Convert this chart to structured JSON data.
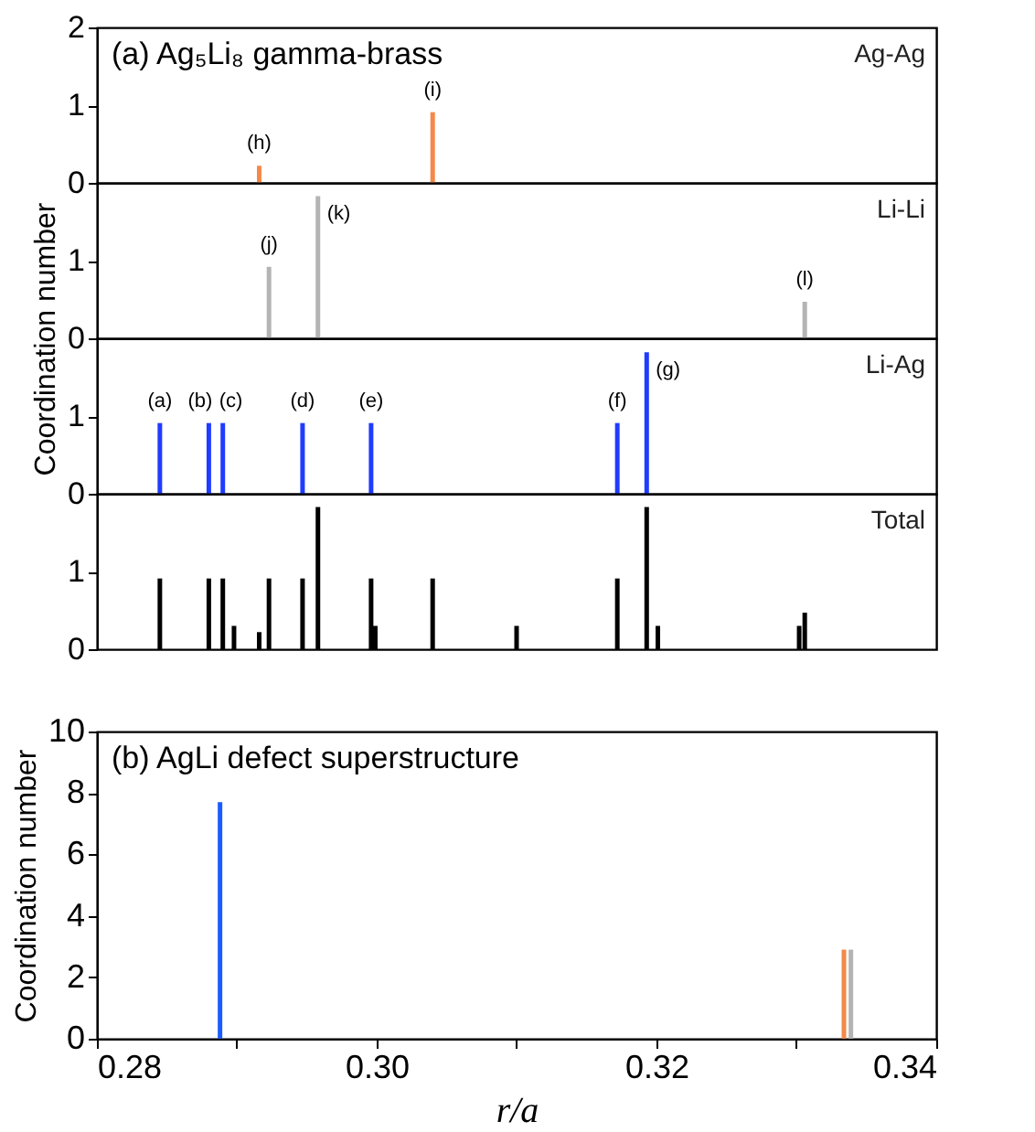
{
  "chart_data": [
    {
      "type": "bar",
      "title": "(a) Ag₅Li₈ gamma-brass",
      "xlim": [
        0.28,
        0.34
      ],
      "ylim": [
        0,
        2
      ],
      "yticks": [
        0,
        1,
        2
      ],
      "tick_labels": "y",
      "series": [
        {
          "name": "Ag-Ag",
          "color": "#f4894a",
          "x": [
            0.2916,
            0.304
          ],
          "values": [
            0.22,
            0.91
          ]
        }
      ],
      "annotations": [
        {
          "text": "(h)",
          "x": 0.2916,
          "y": 0.22
        },
        {
          "text": "(i)",
          "x": 0.304,
          "y": 0.91
        }
      ]
    },
    {
      "type": "bar",
      "ylabel": "Coordination number",
      "xlim": [
        0.28,
        0.34
      ],
      "ylim": [
        0,
        2
      ],
      "yticks": [
        0,
        1
      ],
      "tick_labels": "y",
      "series": [
        {
          "name": "Li-Li",
          "color": "#b4b4b4",
          "x": [
            0.2923,
            0.2958,
            0.3306
          ],
          "values": [
            0.92,
            1.83,
            0.47
          ]
        }
      ],
      "annotations": [
        {
          "text": "(j)",
          "x": 0.2923,
          "y": 0.92
        },
        {
          "text": "(k)",
          "x": 0.2958,
          "y": 1.83
        },
        {
          "text": "(l)",
          "x": 0.3306,
          "y": 0.47
        }
      ]
    },
    {
      "type": "bar",
      "xlim": [
        0.28,
        0.34
      ],
      "ylim": [
        0,
        2
      ],
      "yticks": [
        0,
        1
      ],
      "tick_labels": "y",
      "series": [
        {
          "name": "Li-Ag",
          "color": "#1f3cff",
          "x": [
            0.2845,
            0.288,
            0.289,
            0.2947,
            0.2996,
            0.3172,
            0.3193
          ],
          "values": [
            0.91,
            0.91,
            0.91,
            0.91,
            0.91,
            0.91,
            1.82
          ]
        }
      ],
      "annotations": [
        {
          "text": "(a)",
          "x": 0.2845,
          "y": 0.91
        },
        {
          "text": "(b)",
          "x": 0.288,
          "y": 0.91
        },
        {
          "text": "(c)",
          "x": 0.289,
          "y": 0.91
        },
        {
          "text": "(d)",
          "x": 0.2947,
          "y": 0.91
        },
        {
          "text": "(e)",
          "x": 0.2996,
          "y": 0.91
        },
        {
          "text": "(f)",
          "x": 0.3172,
          "y": 0.91
        },
        {
          "text": "(g)",
          "x": 0.3193,
          "y": 1.82
        }
      ]
    },
    {
      "type": "bar",
      "xlim": [
        0.28,
        0.34
      ],
      "ylim": [
        0,
        2
      ],
      "yticks": [
        0,
        1
      ],
      "tick_labels": "y",
      "series": [
        {
          "name": "Total",
          "color": "#000000",
          "x": [
            0.2845,
            0.288,
            0.289,
            0.2898,
            0.2916,
            0.2923,
            0.2947,
            0.2958,
            0.2996,
            0.2999,
            0.304,
            0.31,
            0.3172,
            0.3193,
            0.3201,
            0.3302,
            0.3306
          ],
          "values": [
            0.91,
            0.91,
            0.91,
            0.3,
            0.22,
            0.91,
            0.91,
            1.83,
            0.91,
            0.3,
            0.91,
            0.3,
            0.91,
            1.83,
            0.3,
            0.3,
            0.47
          ]
        }
      ]
    },
    {
      "type": "bar",
      "title": "(b)  AgLi defect superstructure",
      "xlabel": "r/a",
      "ylabel": "Coordination number",
      "xlim": [
        0.28,
        0.34
      ],
      "ylim": [
        0,
        10
      ],
      "yticks": [
        0,
        2,
        4,
        6,
        8,
        10
      ],
      "xticks": [
        0.28,
        {
          "value": 0.29,
          "label": null
        },
        {
          "value": 0.3,
          "label": "0.30"
        },
        {
          "value": 0.31,
          "label": null
        },
        0.32,
        {
          "value": 0.33,
          "label": null
        },
        0.34
      ],
      "series": [
        {
          "color": "#1a5cff",
          "x": [
            0.2888
          ],
          "values": [
            7.7
          ]
        },
        {
          "color": "#f4894a",
          "x": [
            0.3334
          ],
          "values": [
            2.9
          ]
        },
        {
          "color": "#b4b4b4",
          "x": [
            0.3339
          ],
          "values": [
            2.9
          ]
        }
      ]
    }
  ]
}
